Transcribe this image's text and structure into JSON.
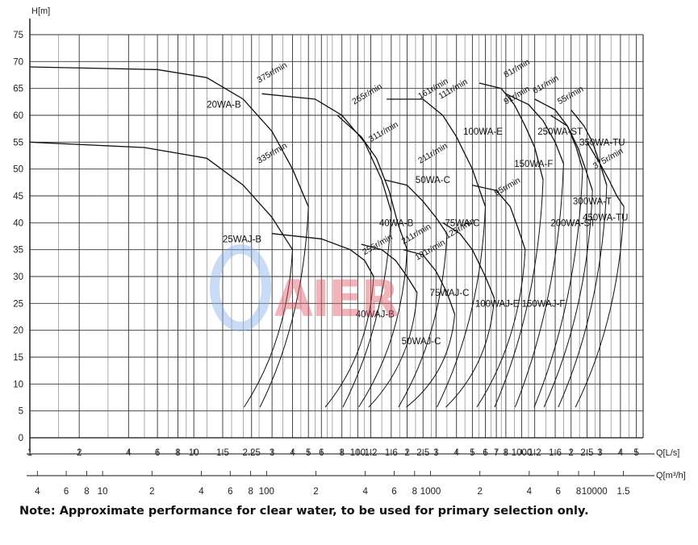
{
  "note": "Note: Approximate performance for clear water, to be used for primary selection only.",
  "watermark_text": "AIER",
  "chart_data": {
    "type": "line",
    "title": "",
    "ylabel": "H[m]",
    "xlabel": "Q[L/s]",
    "x2label": "Q[m³/h]",
    "x_scale": "log",
    "ylim": [
      0,
      75
    ],
    "xlim": [
      1,
      5500
    ],
    "grid": true,
    "y_ticks": [
      "0",
      "5",
      "10",
      "15",
      "20",
      "25",
      "30",
      "35",
      "40",
      "45",
      "50",
      "55",
      "60",
      "65",
      "70",
      "75"
    ],
    "x_ticks_ls": [
      {
        "label": "1",
        "v": 1
      },
      {
        "label": "2",
        "v": 2
      },
      {
        "label": "4",
        "v": 4
      },
      {
        "label": "6",
        "v": 6
      },
      {
        "label": "8",
        "v": 8
      },
      {
        "label": "10",
        "v": 10
      },
      {
        "label": "1.5",
        "v": 15
      },
      {
        "label": "2.25",
        "v": 22.5
      },
      {
        "label": "3",
        "v": 30
      },
      {
        "label": "4",
        "v": 40
      },
      {
        "label": "5",
        "v": 50
      },
      {
        "label": "6",
        "v": 60
      },
      {
        "label": "8",
        "v": 80
      },
      {
        "label": "100",
        "v": 100
      },
      {
        "label": "1.2",
        "v": 120
      },
      {
        "label": "1.6",
        "v": 160
      },
      {
        "label": "2",
        "v": 200
      },
      {
        "label": "2.5",
        "v": 250
      },
      {
        "label": "3",
        "v": 300
      },
      {
        "label": "4",
        "v": 400
      },
      {
        "label": "5",
        "v": 500
      },
      {
        "label": "6",
        "v": 600
      },
      {
        "label": "7",
        "v": 700
      },
      {
        "label": "8",
        "v": 800
      },
      {
        "label": "1000",
        "v": 1000
      },
      {
        "label": "1.2",
        "v": 1200
      },
      {
        "label": "1.6",
        "v": 1600
      },
      {
        "label": "2",
        "v": 2000
      },
      {
        "label": "2.5",
        "v": 2500
      },
      {
        "label": "3",
        "v": 3000
      },
      {
        "label": "4",
        "v": 4000
      },
      {
        "label": "5",
        "v": 5000
      }
    ],
    "x_ticks_m3h": [
      {
        "label": "4",
        "v": 4
      },
      {
        "label": "6",
        "v": 6
      },
      {
        "label": "8",
        "v": 8
      },
      {
        "label": "10",
        "v": 10
      },
      {
        "label": "2",
        "v": 20
      },
      {
        "label": "4",
        "v": 40
      },
      {
        "label": "6",
        "v": 60
      },
      {
        "label": "8",
        "v": 80
      },
      {
        "label": "100",
        "v": 100
      },
      {
        "label": "2",
        "v": 200
      },
      {
        "label": "4",
        "v": 400
      },
      {
        "label": "6",
        "v": 600
      },
      {
        "label": "8",
        "v": 800
      },
      {
        "label": "1000",
        "v": 1000
      },
      {
        "label": "2",
        "v": 2000
      },
      {
        "label": "4",
        "v": 4000
      },
      {
        "label": "6",
        "v": 6000
      },
      {
        "label": "8",
        "v": 8000
      },
      {
        "label": "10000",
        "v": 10000
      },
      {
        "label": "1.5",
        "v": 15000
      }
    ],
    "models": [
      {
        "name": "20WA-B",
        "x": 12,
        "y": 62
      },
      {
        "name": "25WAJ-B",
        "x": 15,
        "y": 37
      },
      {
        "name": "40WA-B",
        "x": 135,
        "y": 40
      },
      {
        "name": "40WAJ-B",
        "x": 97,
        "y": 23
      },
      {
        "name": "50WA-C",
        "x": 225,
        "y": 48
      },
      {
        "name": "50WAJ-C",
        "x": 185,
        "y": 18
      },
      {
        "name": "75WA-C",
        "x": 340,
        "y": 40
      },
      {
        "name": "75WAJ-C",
        "x": 275,
        "y": 27
      },
      {
        "name": "100WA-E",
        "x": 440,
        "y": 57
      },
      {
        "name": "100WAJ-E",
        "x": 520,
        "y": 25
      },
      {
        "name": "150WA-F",
        "x": 900,
        "y": 51
      },
      {
        "name": "150WAJ-F",
        "x": 1000,
        "y": 25
      },
      {
        "name": "200WA-ST",
        "x": 1500,
        "y": 40
      },
      {
        "name": "250WA-ST",
        "x": 1250,
        "y": 57
      },
      {
        "name": "300WA-T",
        "x": 2050,
        "y": 44
      },
      {
        "name": "350WA-TU",
        "x": 2250,
        "y": 55
      },
      {
        "name": "450WA-TU",
        "x": 3100,
        "y": 41
      }
    ],
    "speeds": [
      {
        "label": "375r/min",
        "x": 25,
        "y": 66
      },
      {
        "label": "335r/min",
        "x": 25,
        "y": 51
      },
      {
        "label": "265r/min",
        "x": 95,
        "y": 62
      },
      {
        "label": "311r/min",
        "x": 120,
        "y": 55
      },
      {
        "label": "161r/min",
        "x": 240,
        "y": 63
      },
      {
        "label": "111r/min",
        "x": 320,
        "y": 63
      },
      {
        "label": "211r/min",
        "x": 240,
        "y": 51
      },
      {
        "label": "211r/min",
        "x": 190,
        "y": 36
      },
      {
        "label": "255r/min",
        "x": 110,
        "y": 34
      },
      {
        "label": "181r/min",
        "x": 230,
        "y": 33
      },
      {
        "label": "125r/min",
        "x": 350,
        "y": 37
      },
      {
        "label": "81r/min",
        "x": 800,
        "y": 67
      },
      {
        "label": "91r/min",
        "x": 800,
        "y": 62
      },
      {
        "label": "61r/min",
        "x": 1200,
        "y": 64
      },
      {
        "label": "95r/min",
        "x": 700,
        "y": 45
      },
      {
        "label": "55r/min",
        "x": 1700,
        "y": 62
      },
      {
        "label": "375r/min",
        "x": 2800,
        "y": 50
      }
    ],
    "curves": [
      {
        "name": "20WA-B",
        "points": [
          [
            1,
            69
          ],
          [
            6,
            68.5
          ],
          [
            12,
            67
          ],
          [
            20,
            63
          ],
          [
            30,
            57
          ],
          [
            40,
            50
          ],
          [
            50,
            43
          ]
        ]
      },
      {
        "name": "25WAJ-B",
        "points": [
          [
            1,
            55
          ],
          [
            5,
            54
          ],
          [
            12,
            52
          ],
          [
            20,
            47
          ],
          [
            30,
            41
          ],
          [
            40,
            35
          ]
        ]
      },
      {
        "name": "40WA-B",
        "points": [
          [
            26,
            64
          ],
          [
            55,
            63
          ],
          [
            80,
            60
          ],
          [
            110,
            55
          ],
          [
            140,
            48
          ],
          [
            160,
            42
          ]
        ]
      },
      {
        "name": "40WAJ-B",
        "points": [
          [
            30,
            38
          ],
          [
            60,
            37
          ],
          [
            90,
            35
          ],
          [
            110,
            33
          ],
          [
            125,
            30
          ]
        ]
      },
      {
        "name": "50WA-C",
        "points": [
          [
            75,
            60
          ],
          [
            105,
            56
          ],
          [
            130,
            52
          ],
          [
            155,
            46
          ],
          [
            175,
            40
          ],
          [
            200,
            35
          ]
        ]
      },
      {
        "name": "50WAJ-C",
        "points": [
          [
            105,
            36
          ],
          [
            140,
            35
          ],
          [
            170,
            33
          ],
          [
            200,
            30
          ],
          [
            230,
            27
          ]
        ]
      },
      {
        "name": "75WA-C",
        "points": [
          [
            145,
            48
          ],
          [
            200,
            47
          ],
          [
            250,
            44
          ],
          [
            300,
            41
          ],
          [
            350,
            38
          ]
        ]
      },
      {
        "name": "75WAJ-C",
        "points": [
          [
            190,
            35
          ],
          [
            250,
            34
          ],
          [
            300,
            31
          ],
          [
            350,
            27
          ],
          [
            390,
            23
          ]
        ]
      },
      {
        "name": "100WA-E",
        "points": [
          [
            150,
            63
          ],
          [
            250,
            63
          ],
          [
            330,
            60
          ],
          [
            400,
            56
          ],
          [
            500,
            50
          ],
          [
            600,
            43
          ]
        ]
      },
      {
        "name": "100WAJ-E",
        "points": [
          [
            330,
            40
          ],
          [
            420,
            38
          ],
          [
            500,
            35
          ],
          [
            600,
            30
          ],
          [
            680,
            26
          ]
        ]
      },
      {
        "name": "150WA-F",
        "points": [
          [
            550,
            66
          ],
          [
            750,
            65
          ],
          [
            900,
            62
          ],
          [
            1050,
            58
          ],
          [
            1200,
            54
          ],
          [
            1350,
            48
          ]
        ]
      },
      {
        "name": "150WAJ-F",
        "points": [
          [
            500,
            47
          ],
          [
            700,
            46
          ],
          [
            850,
            43
          ],
          [
            950,
            39
          ],
          [
            1050,
            35
          ]
        ]
      },
      {
        "name": "200WA-ST",
        "points": [
          [
            800,
            64
          ],
          [
            1100,
            62
          ],
          [
            1350,
            59
          ],
          [
            1600,
            55
          ],
          [
            1800,
            51
          ]
        ]
      },
      {
        "name": "250WA-ST",
        "points": [
          [
            1200,
            63
          ],
          [
            1600,
            61
          ],
          [
            1900,
            58
          ],
          [
            2150,
            54
          ],
          [
            2350,
            50
          ]
        ]
      },
      {
        "name": "300WA-T",
        "points": [
          [
            1500,
            60
          ],
          [
            1900,
            58
          ],
          [
            2200,
            54
          ],
          [
            2450,
            50
          ],
          [
            2700,
            46
          ]
        ]
      },
      {
        "name": "350WA-TU",
        "points": [
          [
            2000,
            61
          ],
          [
            2400,
            58
          ],
          [
            2700,
            55
          ],
          [
            3000,
            51
          ],
          [
            3300,
            47
          ]
        ]
      },
      {
        "name": "450WA-TU",
        "points": [
          [
            2500,
            55
          ],
          [
            3000,
            51
          ],
          [
            3400,
            48
          ],
          [
            3800,
            45
          ],
          [
            4200,
            43
          ]
        ]
      }
    ]
  }
}
